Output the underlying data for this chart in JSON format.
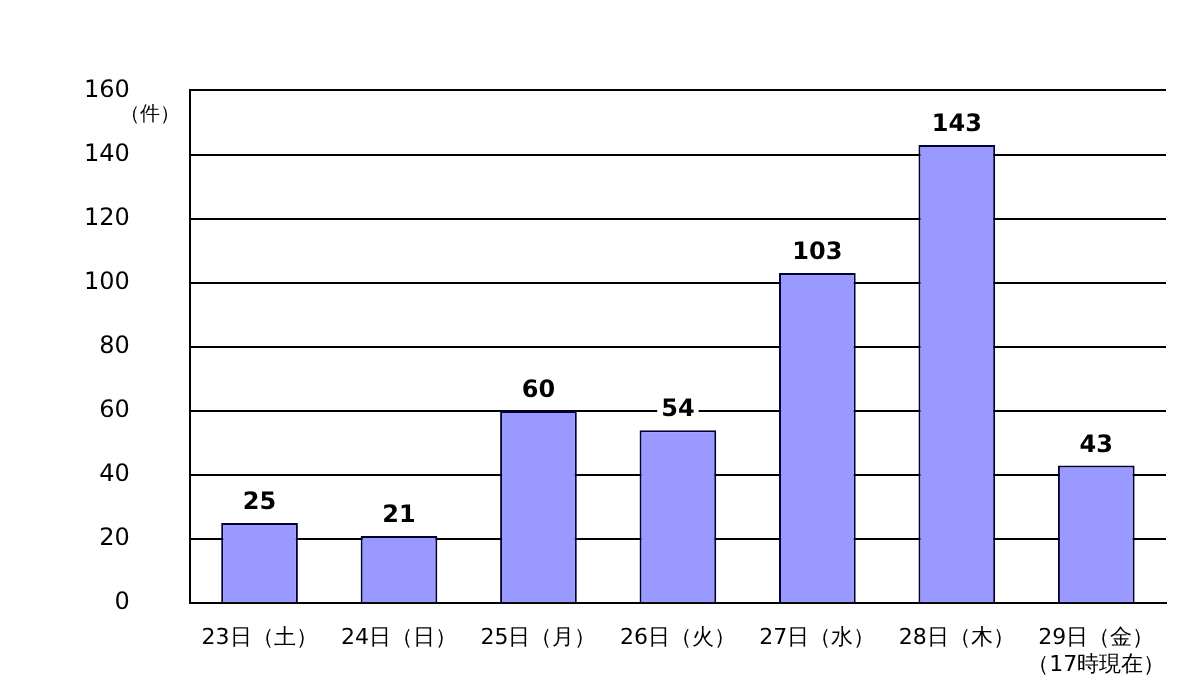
{
  "chart_data": {
    "type": "bar",
    "ylabel": "（件）",
    "categories": [
      "23日（土）",
      "24日（日）",
      "25日（月）",
      "26日（火）",
      "27日（水）",
      "28日（木）",
      "29日（金）（17時現在）"
    ],
    "values": [
      25,
      21,
      60,
      54,
      103,
      143,
      43
    ],
    "color": "#9999ff",
    "ylim": [
      0,
      160
    ],
    "yticks": [
      0,
      20,
      40,
      60,
      80,
      100,
      120,
      140,
      160
    ],
    "grid": "y",
    "data_labels": true,
    "legend": false
  }
}
